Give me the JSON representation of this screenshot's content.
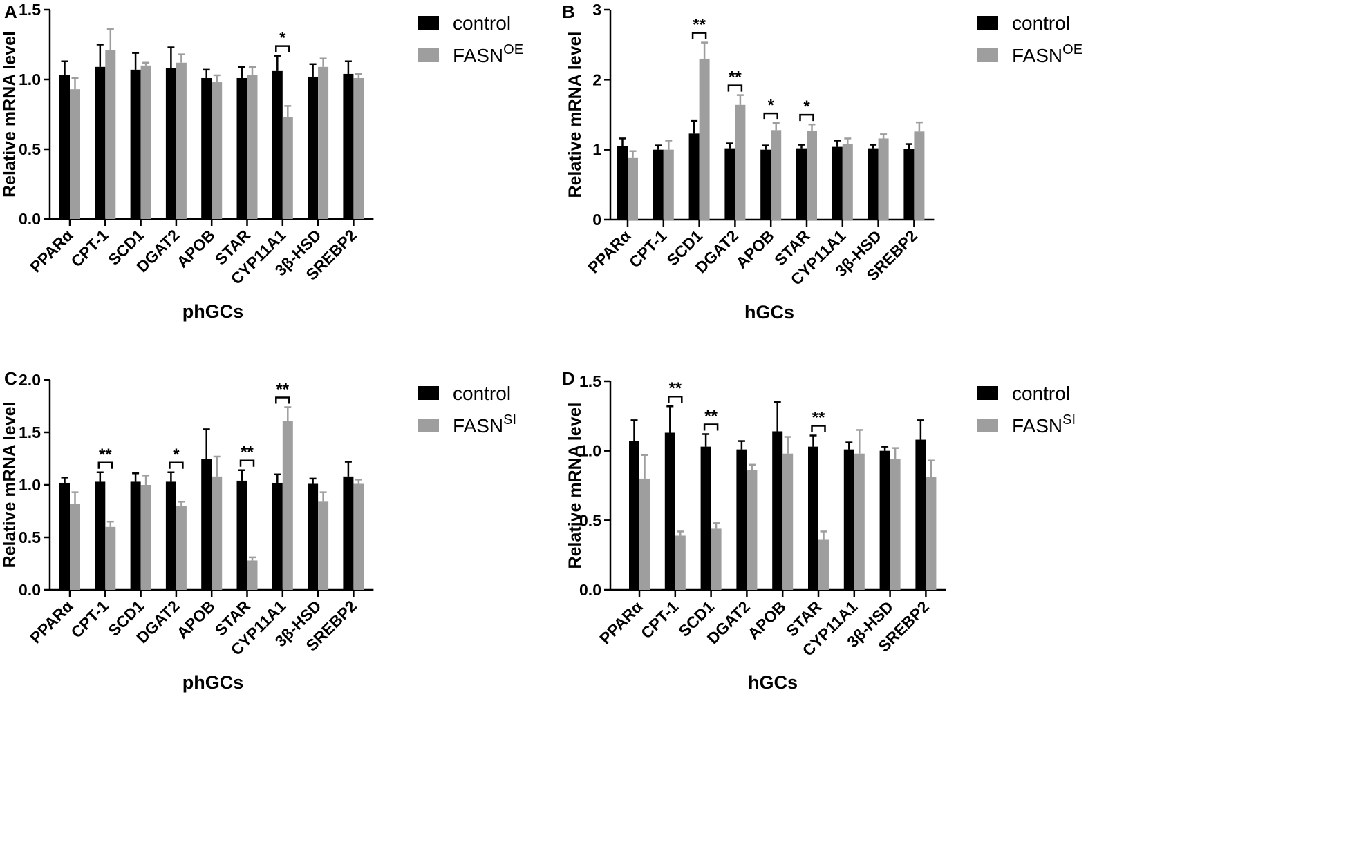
{
  "colors": {
    "control": "#000000",
    "treated": "#9e9e9e",
    "axis": "#000000"
  },
  "chart_data": [
    {
      "type": "bar",
      "panel": "A",
      "xlabel": "phGCs",
      "ylabel": "Relative mRNA level",
      "ylim": [
        0,
        1.5
      ],
      "yticks": [
        "0.0",
        "0.5",
        "1.0",
        "1.5"
      ],
      "categories": [
        "PPARα",
        "CPT-1",
        "SCD1",
        "DGAT2",
        "APOB",
        "STAR",
        "CYP11A1",
        "3β-HSD",
        "SREBP2"
      ],
      "legend": [
        {
          "label": "control"
        },
        {
          "label": "FASN",
          "sup": "OE"
        }
      ],
      "series": [
        {
          "name": "control",
          "values": [
            1.03,
            1.09,
            1.07,
            1.08,
            1.01,
            1.01,
            1.06,
            1.02,
            1.04
          ],
          "errors": [
            0.1,
            0.16,
            0.12,
            0.15,
            0.06,
            0.08,
            0.11,
            0.09,
            0.09
          ]
        },
        {
          "name": "FASN OE",
          "values": [
            0.93,
            1.21,
            1.1,
            1.12,
            0.98,
            1.03,
            0.73,
            1.09,
            1.01
          ],
          "errors": [
            0.08,
            0.15,
            0.02,
            0.06,
            0.05,
            0.06,
            0.08,
            0.06,
            0.03
          ]
        }
      ],
      "significance": [
        {
          "category": "CYP11A1",
          "label": "*"
        }
      ]
    },
    {
      "type": "bar",
      "panel": "B",
      "xlabel": "hGCs",
      "ylabel": "Relative mRNA level",
      "ylim": [
        0,
        3
      ],
      "yticks": [
        "0",
        "1",
        "2",
        "3"
      ],
      "categories": [
        "PPARα",
        "CPT-1",
        "SCD1",
        "DGAT2",
        "APOB",
        "STAR",
        "CYP11A1",
        "3β-HSD",
        "SREBP2"
      ],
      "legend": [
        {
          "label": "control"
        },
        {
          "label": "FASN",
          "sup": "OE"
        }
      ],
      "series": [
        {
          "name": "control",
          "values": [
            1.05,
            1.0,
            1.23,
            1.02,
            1.0,
            1.02,
            1.04,
            1.02,
            1.01
          ],
          "errors": [
            0.11,
            0.06,
            0.18,
            0.07,
            0.06,
            0.05,
            0.09,
            0.05,
            0.07
          ]
        },
        {
          "name": "FASN OE",
          "values": [
            0.88,
            1.0,
            2.3,
            1.64,
            1.28,
            1.27,
            1.08,
            1.16,
            1.26
          ],
          "errors": [
            0.1,
            0.13,
            0.23,
            0.14,
            0.1,
            0.09,
            0.08,
            0.06,
            0.13
          ]
        }
      ],
      "significance": [
        {
          "category": "SCD1",
          "label": "**"
        },
        {
          "category": "DGAT2",
          "label": "**"
        },
        {
          "category": "APOB",
          "label": "*"
        },
        {
          "category": "STAR",
          "label": "*"
        }
      ]
    },
    {
      "type": "bar",
      "panel": "C",
      "xlabel": "phGCs",
      "ylabel": "Relative mRNA level",
      "ylim": [
        0,
        2.0
      ],
      "yticks": [
        "0.0",
        "0.5",
        "1.0",
        "1.5",
        "2.0"
      ],
      "categories": [
        "PPARα",
        "CPT-1",
        "SCD1",
        "DGAT2",
        "APOB",
        "STAR",
        "CYP11A1",
        "3β-HSD",
        "SREBP2"
      ],
      "legend": [
        {
          "label": "control"
        },
        {
          "label": "FASN",
          "sup": "SI"
        }
      ],
      "series": [
        {
          "name": "control",
          "values": [
            1.02,
            1.03,
            1.03,
            1.03,
            1.25,
            1.04,
            1.02,
            1.01,
            1.08
          ],
          "errors": [
            0.05,
            0.09,
            0.08,
            0.09,
            0.28,
            0.1,
            0.08,
            0.05,
            0.14
          ]
        },
        {
          "name": "FASN SI",
          "values": [
            0.82,
            0.6,
            1.0,
            0.8,
            1.08,
            0.28,
            1.61,
            0.84,
            1.01
          ],
          "errors": [
            0.11,
            0.05,
            0.09,
            0.04,
            0.19,
            0.03,
            0.13,
            0.09,
            0.04
          ]
        }
      ],
      "significance": [
        {
          "category": "CPT-1",
          "label": "**"
        },
        {
          "category": "DGAT2",
          "label": "*"
        },
        {
          "category": "STAR",
          "label": "**"
        },
        {
          "category": "CYP11A1",
          "label": "**"
        }
      ]
    },
    {
      "type": "bar",
      "panel": "D",
      "xlabel": "hGCs",
      "ylabel": "Relative mRNA level",
      "ylim": [
        0,
        1.5
      ],
      "yticks": [
        "0.0",
        "0.5",
        "1.0",
        "1.5"
      ],
      "categories": [
        "PPARα",
        "CPT-1",
        "SCD1",
        "DGAT2",
        "APOB",
        "STAR",
        "CYP11A1",
        "3β-HSD",
        "SREBP2"
      ],
      "legend": [
        {
          "label": "control"
        },
        {
          "label": "FASN",
          "sup": "SI"
        }
      ],
      "series": [
        {
          "name": "control",
          "values": [
            1.07,
            1.13,
            1.03,
            1.01,
            1.14,
            1.03,
            1.01,
            1.0,
            1.08
          ],
          "errors": [
            0.15,
            0.19,
            0.09,
            0.06,
            0.21,
            0.08,
            0.05,
            0.03,
            0.14
          ]
        },
        {
          "name": "FASN SI",
          "values": [
            0.8,
            0.39,
            0.44,
            0.86,
            0.98,
            0.36,
            0.98,
            0.94,
            0.81
          ],
          "errors": [
            0.17,
            0.03,
            0.04,
            0.04,
            0.12,
            0.06,
            0.17,
            0.08,
            0.12
          ]
        }
      ],
      "significance": [
        {
          "category": "CPT-1",
          "label": "**"
        },
        {
          "category": "SCD1",
          "label": "**"
        },
        {
          "category": "STAR",
          "label": "**"
        }
      ]
    }
  ]
}
